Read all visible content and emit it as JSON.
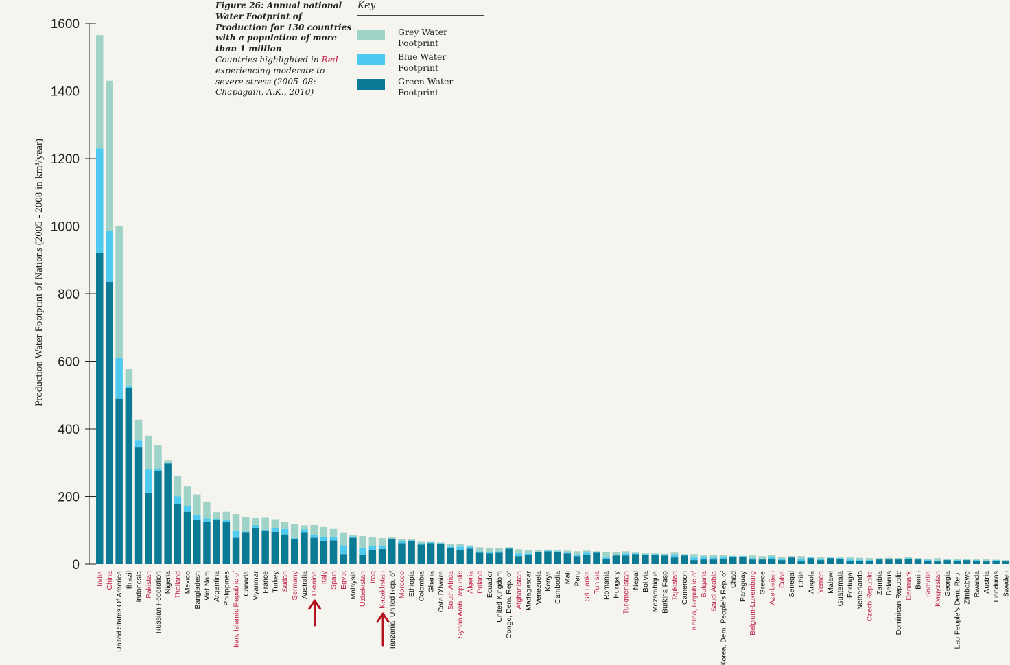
{
  "colors": {
    "grey": "#9fd3c7",
    "blue": "#4ec9f0",
    "green": "#0b7a95",
    "red_label": "#c0254d",
    "black_label": "#111111",
    "arrow": "#b3141d"
  },
  "title": {
    "bold": "Figure 26: Annual national Water Footprint of Production for 130 countries with a population of more than 1 million",
    "pre": "Countries highlighted in ",
    "red": "Red",
    "post": " experiencing moderate to severe stress (2005–08: Chapagain, A.K., 2010)"
  },
  "key": {
    "title": "Key",
    "items": [
      {
        "label": "Grey Water Footprint",
        "color": "#9fd3c7"
      },
      {
        "label": "Blue Water Footprint",
        "color": "#4ec9f0"
      },
      {
        "label": "Green Water Footprint",
        "color": "#0b7a95"
      }
    ]
  },
  "chart_data": {
    "type": "bar",
    "stacked": true,
    "ylabel": "Production Water Footprint of Nations (2005 - 2008 in km³/year)",
    "ylim": [
      0,
      1600
    ],
    "yticks": [
      0,
      200,
      400,
      600,
      800,
      1000,
      1200,
      1400,
      1600
    ],
    "categories": [
      "India",
      "China",
      "United States Of America",
      "Brazil",
      "Indonesia",
      "Pakistan",
      "Russian Federation",
      "Nigeria",
      "Thailand",
      "Mexico",
      "Bangladesh",
      "Viet Nam",
      "Argentina",
      "Philippines",
      "Iran, Islamic Republic of",
      "Canada",
      "Myanmar",
      "France",
      "Turkey",
      "Sudan",
      "Germany",
      "Australia",
      "Ukraine",
      "Italy",
      "Spain",
      "Egypt",
      "Malaysia",
      "Uzbekistan",
      "Iraq",
      "Kazakhstan",
      "Tanzania, United Rep. of",
      "Morocco",
      "Ethiopia",
      "Colombia",
      "Ghana",
      "Cote D'Ivoire",
      "South Africa",
      "Syrian Arab Republic",
      "Algeria",
      "Poland",
      "Ecuador",
      "United Kingdom",
      "Congo, Dem. Rep. of",
      "Afghanistan",
      "Madagascar",
      "Venezuela",
      "Kenya",
      "Cambodia",
      "Mali",
      "Peru",
      "Sri Lanka",
      "Tunisia",
      "Romania",
      "Hungary",
      "Turkmenistan",
      "Nepal",
      "Bolivia",
      "Mozambique",
      "Burkina Faso",
      "Tajikistan",
      "Cameroon",
      "Korea, Republic of",
      "Bulgaria",
      "Saudi Arabia",
      "Korea, Dem. People's Rep. of",
      "Chad",
      "Paraguay",
      "Belgium-Luxemburg",
      "Greece",
      "Azerbaijan",
      "Cuba",
      "Senegal",
      "Chile",
      "Angola",
      "Yemen",
      "Malawi",
      "Guatemala",
      "Portugal",
      "Netherlands",
      "Czech Republic",
      "Zambia",
      "Belarus",
      "Dominican Republic",
      "Denmark",
      "Benin",
      "Somalia",
      "Kyrgyzstan",
      "Georgia",
      "Lao People's Dem. Rep.",
      "Zimbabwe",
      "Rwanda",
      "Austria",
      "Honduras",
      "Sweden"
    ],
    "highlighted": [
      "India",
      "China",
      "Pakistan",
      "Thailand",
      "Iran, Islamic Republic of",
      "Sudan",
      "Germany",
      "Ukraine",
      "Italy",
      "Spain",
      "Egypt",
      "Uzbekistan",
      "Iraq",
      "Kazakhstan",
      "Morocco",
      "South Africa",
      "Syrian Arab Republic",
      "Algeria",
      "Poland",
      "Afghanistan",
      "Sri Lanka",
      "Tunisia",
      "Turkmenistan",
      "Tajikistan",
      "Korea, Republic of",
      "Bulgaria",
      "Saudi Arabia",
      "Belgium-Luxemburg",
      "Azerbaijan",
      "Cuba",
      "Yemen",
      "Czech Republic",
      "Denmark",
      "Somalia",
      "Kyrgyzstan"
    ],
    "series": [
      {
        "name": "Green Water Footprint",
        "values": [
          920,
          835,
          490,
          520,
          345,
          210,
          275,
          298,
          178,
          155,
          132,
          125,
          130,
          126,
          78,
          95,
          108,
          98,
          96,
          88,
          75,
          95,
          78,
          68,
          70,
          30,
          78,
          28,
          42,
          45,
          74,
          62,
          68,
          58,
          62,
          60,
          48,
          42,
          46,
          34,
          32,
          34,
          46,
          24,
          28,
          35,
          38,
          36,
          32,
          24,
          28,
          34,
          16,
          26,
          26,
          30,
          28,
          28,
          26,
          20,
          26,
          12,
          14,
          14,
          16,
          22,
          22,
          14,
          14,
          16,
          12,
          20,
          10,
          18,
          12,
          18,
          16,
          10,
          10,
          10,
          14,
          14,
          14,
          16,
          14,
          10,
          8,
          12,
          10,
          12,
          10,
          8,
          10,
          8
        ]
      },
      {
        "name": "Blue Water Footprint",
        "values": [
          310,
          150,
          120,
          8,
          22,
          70,
          6,
          2,
          22,
          16,
          14,
          10,
          4,
          4,
          20,
          2,
          8,
          4,
          12,
          16,
          2,
          8,
          10,
          12,
          10,
          26,
          4,
          20,
          12,
          10,
          2,
          6,
          2,
          4,
          2,
          2,
          4,
          10,
          6,
          4,
          4,
          4,
          2,
          8,
          4,
          2,
          2,
          2,
          2,
          4,
          6,
          2,
          4,
          2,
          6,
          2,
          2,
          2,
          2,
          8,
          2,
          8,
          8,
          6,
          6,
          2,
          2,
          4,
          2,
          6,
          4,
          2,
          6,
          2,
          4,
          1,
          2,
          4,
          3,
          2,
          2,
          2,
          2,
          2,
          2,
          3,
          3,
          1,
          2,
          1,
          2,
          2,
          2,
          2
        ]
      },
      {
        "name": "Grey Water Footprint",
        "values": [
          335,
          445,
          390,
          50,
          60,
          100,
          70,
          6,
          62,
          60,
          60,
          50,
          20,
          25,
          50,
          42,
          20,
          35,
          25,
          20,
          42,
          12,
          28,
          30,
          24,
          38,
          5,
          35,
          26,
          22,
          3,
          6,
          3,
          4,
          2,
          2,
          8,
          8,
          4,
          12,
          12,
          10,
          2,
          12,
          10,
          4,
          3,
          3,
          6,
          10,
          6,
          2,
          16,
          8,
          6,
          2,
          2,
          2,
          3,
          6,
          2,
          10,
          6,
          8,
          6,
          1,
          1,
          8,
          8,
          5,
          6,
          2,
          8,
          2,
          4,
          1,
          2,
          6,
          6,
          6,
          2,
          3,
          2,
          2,
          2,
          2,
          7,
          2,
          3,
          1,
          2,
          4,
          1,
          2
        ]
      }
    ],
    "annotations": [
      {
        "type": "arrow",
        "target": "Ukraine"
      },
      {
        "type": "arrow",
        "target": "Kazakhstan"
      }
    ]
  }
}
